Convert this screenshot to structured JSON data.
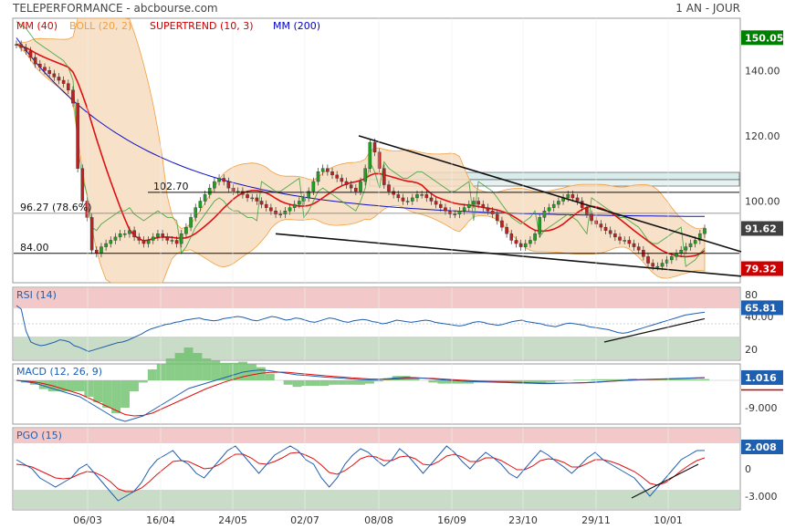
{
  "header": {
    "title": "TELEPERFORMANCE - abcbourse.com",
    "period": "1 AN - JOUR"
  },
  "chart_data": [
    {
      "type": "candlestick",
      "panel": "price",
      "legend": [
        {
          "label": "MM (40)",
          "color": "#dd0000"
        },
        {
          "label": "BOLL (20, 2)",
          "color": "#f0a040"
        },
        {
          "label": "SUPERTREND (10, 3)",
          "color": "#cc0000"
        },
        {
          "label": "MM (200)",
          "color": "#0000cc"
        }
      ],
      "y_ticks": [
        "140.00",
        "120.00",
        "100.00",
        "80.00"
      ],
      "ylim": [
        75,
        156
      ],
      "price_tags": [
        {
          "value": 150.05,
          "label": "150.05",
          "color": "#008000"
        },
        {
          "value": 91.62,
          "label": "91.62",
          "color": "#404040"
        },
        {
          "value": 79.32,
          "label": "79.32",
          "color": "#cc0000"
        }
      ],
      "levels": [
        {
          "value": 102.7,
          "label": "102.70"
        },
        {
          "value": 96.27,
          "label": "96.27  (78.6%)"
        },
        {
          "value": 84.0,
          "label": "84.00"
        }
      ],
      "close": [
        148,
        147,
        146,
        144,
        142,
        141,
        140,
        139,
        138,
        137,
        136,
        134,
        130,
        110,
        100,
        95,
        85,
        84,
        86,
        87,
        88,
        89,
        90,
        90,
        91,
        89,
        88,
        87,
        88,
        89,
        90,
        89,
        88,
        88,
        87,
        90,
        92,
        95,
        98,
        100,
        102,
        104,
        106,
        107,
        106,
        104,
        103,
        103,
        102,
        101,
        101,
        100,
        99,
        98,
        97,
        96,
        96,
        97,
        98,
        99,
        100,
        101,
        103,
        106,
        109,
        110,
        109,
        108,
        107,
        106,
        105,
        104,
        103,
        106,
        110,
        118,
        115,
        110,
        105,
        103,
        102,
        101,
        100,
        100,
        101,
        102,
        102,
        101,
        100,
        99,
        98,
        97,
        96,
        96,
        97,
        98,
        99,
        100,
        99,
        98,
        97,
        96,
        94,
        92,
        90,
        88,
        87,
        86,
        87,
        88,
        90,
        95,
        97,
        98,
        99,
        100,
        101,
        102,
        101,
        100,
        98,
        96,
        94,
        93,
        92,
        91,
        90,
        89,
        88,
        88,
        87,
        86,
        85,
        83,
        81,
        80,
        80,
        81,
        82,
        83,
        84,
        85,
        86,
        87,
        88,
        90,
        91.62
      ]
    },
    {
      "type": "line",
      "panel": "rsi",
      "legend": [
        {
          "label": "RSI (14)",
          "color": "#1f5fb0"
        }
      ],
      "y_ticks": [
        "80",
        "40.00",
        "20"
      ],
      "ylim": [
        0,
        100
      ],
      "value_tag": {
        "label": "65.81",
        "color": "#1f5fb0"
      },
      "series": [
        {
          "name": "RSI (14)",
          "values": [
            75,
            70,
            40,
            25,
            22,
            20,
            21,
            23,
            25,
            28,
            27,
            25,
            20,
            18,
            15,
            12,
            14,
            16,
            18,
            20,
            22,
            24,
            25,
            27,
            30,
            33,
            36,
            40,
            43,
            45,
            47,
            49,
            50,
            52,
            53,
            55,
            56,
            57,
            58,
            56,
            55,
            54,
            55,
            57,
            58,
            59,
            60,
            59,
            57,
            55,
            54,
            56,
            58,
            60,
            59,
            57,
            55,
            56,
            58,
            57,
            55,
            53,
            52,
            54,
            56,
            58,
            57,
            55,
            53,
            52,
            54,
            55,
            56,
            55,
            53,
            52,
            50,
            51,
            53,
            55,
            54,
            53,
            52,
            53,
            54,
            55,
            54,
            52,
            51,
            50,
            49,
            48,
            47,
            48,
            50,
            52,
            53,
            52,
            50,
            49,
            48,
            49,
            51,
            53,
            54,
            55,
            53,
            52,
            51,
            50,
            48,
            47,
            46,
            48,
            50,
            51,
            50,
            49,
            48,
            46,
            45,
            44,
            43,
            42,
            40,
            38,
            37,
            38,
            40,
            42,
            44,
            46,
            48,
            50,
            52,
            54,
            56,
            58,
            60,
            62,
            63,
            64,
            65,
            65.81
          ]
        }
      ]
    },
    {
      "type": "line",
      "panel": "macd",
      "legend": [
        {
          "label": "MACD (12, 26, 9)",
          "color": "#1f5fb0"
        }
      ],
      "y_ticks": [
        "-9.000"
      ],
      "value_tag": {
        "label": "1.016",
        "color": "#1f5fb0"
      },
      "series": [
        {
          "name": "MACD",
          "values": [
            0,
            -0.5,
            -1,
            -2,
            -3,
            -4,
            -5,
            -6,
            -8,
            -10,
            -12,
            -14,
            -15,
            -14,
            -13,
            -11,
            -9,
            -7,
            -5,
            -3,
            -2,
            -1,
            0,
            1,
            2,
            3,
            3.5,
            3.8,
            3.5,
            3,
            2.5,
            2,
            1.8,
            1.5,
            1.2,
            1,
            0.8,
            0.5,
            0.3,
            0.2,
            0.3,
            0.6,
            0.9,
            1.1,
            1.0,
            0.8,
            0.5,
            0.2,
            0,
            -0.2,
            -0.4,
            -0.5,
            -0.6,
            -0.7,
            -0.8,
            -0.9,
            -1,
            -1.1,
            -1.2,
            -1.2,
            -1.1,
            -1,
            -0.9,
            -0.8,
            -0.6,
            -0.4,
            -0.2,
            0,
            0.2,
            0.3,
            0.4,
            0.5,
            0.6,
            0.7,
            0.8,
            0.9,
            1.016
          ]
        },
        {
          "name": "Signal",
          "values": [
            0,
            -0.3,
            -0.6,
            -1.2,
            -2,
            -3,
            -4,
            -5,
            -6.5,
            -8,
            -9.5,
            -11,
            -12.5,
            -13,
            -12.8,
            -12,
            -10.5,
            -9,
            -7.5,
            -6,
            -4.5,
            -3,
            -1.8,
            -0.6,
            0.4,
            1.3,
            2,
            2.6,
            2.9,
            3,
            2.9,
            2.6,
            2.3,
            2,
            1.7,
            1.4,
            1.2,
            0.9,
            0.7,
            0.5,
            0.4,
            0.4,
            0.5,
            0.7,
            0.8,
            0.8,
            0.7,
            0.5,
            0.3,
            0.1,
            -0.1,
            -0.3,
            -0.4,
            -0.5,
            -0.6,
            -0.7,
            -0.8,
            -0.9,
            -1,
            -1.05,
            -1.05,
            -1,
            -0.95,
            -0.85,
            -0.7,
            -0.5,
            -0.3,
            -0.1,
            0.05,
            0.2,
            0.3,
            0.4,
            0.5,
            0.6,
            0.7,
            0.8,
            0.9
          ]
        }
      ]
    },
    {
      "type": "line",
      "panel": "pgo",
      "legend": [
        {
          "label": "PGO (15)",
          "color": "#1f5fb0"
        }
      ],
      "y_ticks": [
        "0",
        "-3.000"
      ],
      "ylim": [
        -4.5,
        4.5
      ],
      "value_tag": {
        "label": "2.008",
        "color": "#1f5fb0"
      },
      "series": [
        {
          "name": "PGO",
          "values": [
            1,
            0.5,
            0,
            -1,
            -1.5,
            -2,
            -1.5,
            -1,
            0,
            0.5,
            -0.5,
            -1.5,
            -2.5,
            -3.5,
            -3,
            -2.5,
            -1.5,
            0,
            1,
            1.5,
            2,
            1,
            0.5,
            -0.5,
            -1,
            0,
            1,
            2,
            2.5,
            1.5,
            0.5,
            -0.5,
            0.5,
            1.5,
            2,
            2.5,
            2,
            1,
            0.5,
            -1,
            -2,
            -1,
            0.5,
            1.5,
            2.2,
            1.8,
            1,
            0.3,
            1,
            2.2,
            1.5,
            0.5,
            -0.5,
            0.5,
            1.5,
            2.5,
            1.8,
            0.8,
            0,
            1,
            1.8,
            1.2,
            0.5,
            -0.5,
            -1,
            0,
            1,
            2,
            1.5,
            0.8,
            0.2,
            -0.5,
            0.3,
            1.2,
            1.8,
            1,
            0.5,
            0,
            -0.5,
            -1,
            -2,
            -3,
            -2,
            -1,
            0,
            1,
            1.5,
            2,
            2.008
          ]
        },
        {
          "name": "Signal",
          "values": [
            0.5,
            0.4,
            0.2,
            -0.2,
            -0.6,
            -1,
            -1.1,
            -1,
            -0.6,
            -0.3,
            -0.4,
            -0.8,
            -1.4,
            -2.2,
            -2.5,
            -2.5,
            -2.1,
            -1.4,
            -0.6,
            0.1,
            0.8,
            0.9,
            0.8,
            0.4,
            0,
            0.1,
            0.5,
            1.1,
            1.6,
            1.6,
            1.2,
            0.6,
            0.5,
            0.8,
            1.2,
            1.7,
            1.8,
            1.5,
            1.1,
            0.4,
            -0.4,
            -0.6,
            -0.2,
            0.4,
            1.1,
            1.4,
            1.3,
            0.9,
            0.9,
            1.3,
            1.4,
            1.1,
            0.5,
            0.4,
            0.8,
            1.4,
            1.6,
            1.3,
            0.8,
            0.8,
            1.2,
            1.2,
            0.9,
            0.4,
            -0.1,
            -0.1,
            0.3,
            0.9,
            1.1,
            1,
            0.7,
            0.2,
            0.2,
            0.6,
            1,
            1,
            0.8,
            0.5,
            0.1,
            -0.3,
            -0.9,
            -1.6,
            -1.8,
            -1.5,
            -0.9,
            -0.2,
            0.4,
            0.9,
            1.2
          ]
        }
      ]
    },
    {
      "type": "axis",
      "panel": "dates",
      "x_ticks": [
        "06/03",
        "16/04",
        "24/05",
        "02/07",
        "08/08",
        "16/09",
        "23/10",
        "29/11",
        "10/01"
      ]
    }
  ]
}
